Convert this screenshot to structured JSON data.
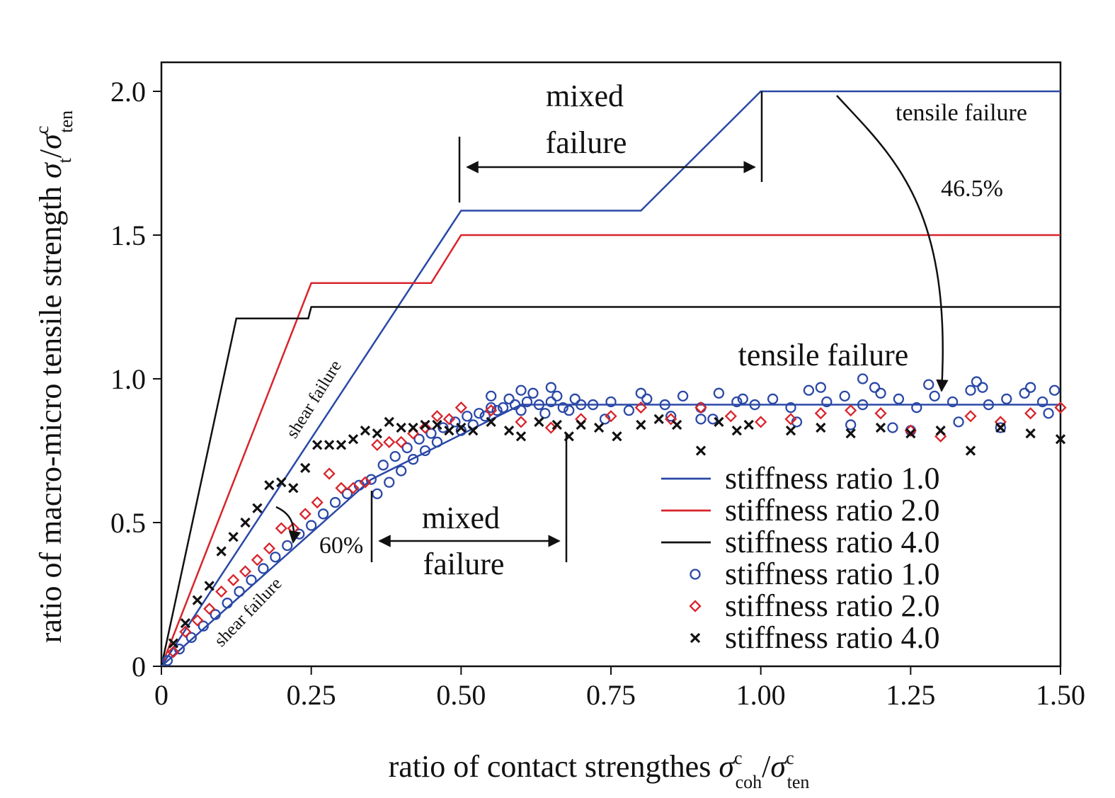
{
  "chart_data": {
    "type": "line",
    "xlabel_parts": [
      "ratio of contact strengthes ",
      "σ",
      "c",
      "coh",
      "/",
      "σ",
      "c",
      "ten"
    ],
    "ylabel_parts": [
      "ratio of macro-micro tensile strength ",
      "σ",
      "t",
      "/",
      "σ",
      "c",
      "ten"
    ],
    "xlim": [
      0,
      1.5
    ],
    "ylim": [
      0,
      2.1
    ],
    "x_ticks": [
      0,
      0.25,
      0.5,
      0.75,
      1.0,
      1.25,
      1.5
    ],
    "x_tick_labels": [
      "0",
      "0.25",
      "0.50",
      "0.75",
      "1.00",
      "1.25",
      "1.50"
    ],
    "y_ticks": [
      0,
      0.5,
      1.0,
      1.5,
      2.0
    ],
    "y_tick_labels": [
      "0",
      "0.5",
      "1.0",
      "1.5",
      "2.0"
    ],
    "colors": {
      "blue": "#2a48a6",
      "red": "#d8242b",
      "black": "#111111"
    },
    "line_series": [
      {
        "name": "stiffness ratio 1.0",
        "color": "#2a48a6",
        "x": [
          0,
          0.5,
          0.8,
          1.0,
          1.5
        ],
        "y": [
          0,
          1.585,
          1.585,
          2.0,
          2.0
        ]
      },
      {
        "name": "stiffness ratio 2.0",
        "color": "#d8242b",
        "x": [
          0,
          0.25,
          0.45,
          0.5,
          1.5
        ],
        "y": [
          0,
          1.333,
          1.333,
          1.5,
          1.5
        ]
      },
      {
        "name": "stiffness ratio 4.0",
        "color": "#111111",
        "x": [
          0,
          0.125,
          0.245,
          0.25,
          1.5
        ],
        "y": [
          0,
          1.21,
          1.21,
          1.25,
          1.25
        ]
      }
    ],
    "trend_line": {
      "color": "#2a48a6",
      "x": [
        0,
        0.35,
        0.6,
        1.5
      ],
      "y": [
        0,
        0.65,
        0.91,
        0.91
      ]
    },
    "scatter_series": [
      {
        "name": "stiffness ratio 1.0",
        "marker": "circle",
        "color": "#2a48a6",
        "x": [
          0.01,
          0.03,
          0.05,
          0.07,
          0.09,
          0.11,
          0.13,
          0.15,
          0.17,
          0.19,
          0.21,
          0.23,
          0.25,
          0.27,
          0.29,
          0.31,
          0.33,
          0.35,
          0.37,
          0.39,
          0.41,
          0.43,
          0.45,
          0.47,
          0.49,
          0.51,
          0.53,
          0.55,
          0.57,
          0.59,
          0.61,
          0.63,
          0.65,
          0.67,
          0.69,
          0.72,
          0.75,
          0.78,
          0.81,
          0.84,
          0.87,
          0.9,
          0.93,
          0.96,
          0.99,
          1.02,
          1.05,
          1.08,
          1.11,
          1.14,
          1.17,
          1.2,
          1.23,
          1.26,
          1.29,
          1.32,
          1.35,
          1.38,
          1.41,
          1.44,
          1.47,
          1.49,
          0.36,
          0.38,
          0.4,
          0.42,
          0.44,
          0.46,
          0.5,
          0.52,
          0.54,
          0.56,
          0.58,
          0.6,
          0.62,
          0.64,
          0.66,
          0.68,
          0.7,
          0.74,
          0.8,
          0.85,
          0.92,
          0.97,
          1.06,
          1.1,
          1.15,
          1.19,
          1.25,
          1.28,
          1.33,
          1.37,
          1.4,
          1.45,
          1.48,
          0.55,
          0.6,
          0.65,
          0.9,
          1.17,
          1.22,
          1.36
        ],
        "y": [
          0.02,
          0.06,
          0.1,
          0.14,
          0.18,
          0.22,
          0.26,
          0.3,
          0.34,
          0.38,
          0.42,
          0.46,
          0.49,
          0.53,
          0.57,
          0.6,
          0.63,
          0.65,
          0.7,
          0.73,
          0.76,
          0.79,
          0.81,
          0.83,
          0.85,
          0.87,
          0.88,
          0.9,
          0.9,
          0.91,
          0.92,
          0.91,
          0.92,
          0.9,
          0.93,
          0.91,
          0.92,
          0.89,
          0.93,
          0.91,
          0.94,
          0.9,
          0.95,
          0.92,
          0.91,
          0.93,
          0.9,
          0.96,
          0.92,
          0.94,
          0.91,
          0.95,
          0.93,
          0.9,
          0.94,
          0.92,
          0.96,
          0.91,
          0.93,
          0.95,
          0.92,
          0.96,
          0.6,
          0.64,
          0.68,
          0.72,
          0.75,
          0.78,
          0.82,
          0.84,
          0.87,
          0.89,
          0.93,
          0.89,
          0.95,
          0.88,
          0.94,
          0.89,
          0.91,
          0.86,
          0.95,
          0.87,
          0.86,
          0.93,
          0.85,
          0.97,
          0.84,
          0.97,
          0.82,
          0.98,
          0.85,
          0.97,
          0.83,
          0.97,
          0.88,
          0.94,
          0.96,
          0.97,
          0.86,
          1.0,
          0.83,
          0.99
        ],
        "legend_only": false
      },
      {
        "name": "stiffness ratio 2.0",
        "marker": "diamond",
        "color": "#d8242b",
        "x": [
          0.02,
          0.04,
          0.06,
          0.08,
          0.1,
          0.12,
          0.14,
          0.16,
          0.18,
          0.2,
          0.22,
          0.24,
          0.26,
          0.28,
          0.3,
          0.32,
          0.34,
          0.36,
          0.38,
          0.4,
          0.42,
          0.44,
          0.46,
          0.48,
          0.5,
          0.55,
          0.6,
          0.65,
          0.7,
          0.75,
          0.8,
          0.85,
          0.9,
          0.95,
          1.0,
          1.05,
          1.1,
          1.15,
          1.2,
          1.25,
          1.3,
          1.35,
          1.4,
          1.45,
          1.5
        ],
        "y": [
          0.05,
          0.12,
          0.16,
          0.2,
          0.26,
          0.3,
          0.33,
          0.37,
          0.41,
          0.48,
          0.48,
          0.53,
          0.57,
          0.67,
          0.62,
          0.62,
          0.64,
          0.77,
          0.78,
          0.78,
          0.81,
          0.83,
          0.87,
          0.86,
          0.9,
          0.89,
          0.85,
          0.83,
          0.86,
          0.87,
          0.9,
          0.86,
          0.9,
          0.87,
          0.85,
          0.86,
          0.88,
          0.89,
          0.88,
          0.82,
          0.8,
          0.87,
          0.85,
          0.88,
          0.9
        ]
      },
      {
        "name": "stiffness ratio 4.0",
        "marker": "x",
        "color": "#111111",
        "x": [
          0.02,
          0.04,
          0.06,
          0.08,
          0.1,
          0.12,
          0.14,
          0.16,
          0.18,
          0.2,
          0.22,
          0.24,
          0.26,
          0.28,
          0.3,
          0.32,
          0.34,
          0.36,
          0.38,
          0.4,
          0.42,
          0.44,
          0.46,
          0.48,
          0.5,
          0.52,
          0.55,
          0.58,
          0.6,
          0.63,
          0.66,
          0.68,
          0.7,
          0.73,
          0.76,
          0.8,
          0.83,
          0.86,
          0.9,
          0.93,
          0.96,
          0.98,
          1.05,
          1.1,
          1.15,
          1.2,
          1.25,
          1.3,
          1.35,
          1.4,
          1.45,
          1.5
        ],
        "y": [
          0.08,
          0.15,
          0.23,
          0.28,
          0.4,
          0.45,
          0.5,
          0.55,
          0.63,
          0.64,
          0.62,
          0.69,
          0.77,
          0.77,
          0.77,
          0.79,
          0.82,
          0.81,
          0.85,
          0.83,
          0.83,
          0.84,
          0.84,
          0.82,
          0.83,
          0.82,
          0.85,
          0.82,
          0.8,
          0.85,
          0.84,
          0.8,
          0.84,
          0.83,
          0.8,
          0.84,
          0.86,
          0.84,
          0.75,
          0.85,
          0.82,
          0.84,
          0.82,
          0.83,
          0.81,
          0.83,
          0.81,
          0.82,
          0.75,
          0.83,
          0.81,
          0.79
        ]
      }
    ],
    "annotations": {
      "mixed_top_1": "mixed",
      "mixed_top_2": "failure",
      "tensile_top": "tensile failure",
      "pct_top": "46.5%",
      "tensile_mid": "tensile failure",
      "shear_upper": "shear failure",
      "shear_lower": "shear failure",
      "pct_low": "60%",
      "mixed_low_1": "mixed",
      "mixed_low_2": "failure"
    },
    "legend": {
      "placement": "lower-right",
      "entries": [
        {
          "label": "stiffness ratio 1.0",
          "type": "line",
          "color": "#2a48a6"
        },
        {
          "label": "stiffness ratio 2.0",
          "type": "line",
          "color": "#d8242b"
        },
        {
          "label": "stiffness ratio 4.0",
          "type": "line",
          "color": "#111111"
        },
        {
          "label": "stiffness ratio 1.0",
          "type": "circle",
          "color": "#2a48a6"
        },
        {
          "label": "stiffness ratio 2.0",
          "type": "diamond",
          "color": "#d8242b"
        },
        {
          "label": "stiffness ratio 4.0",
          "type": "x",
          "color": "#111111"
        }
      ]
    }
  }
}
